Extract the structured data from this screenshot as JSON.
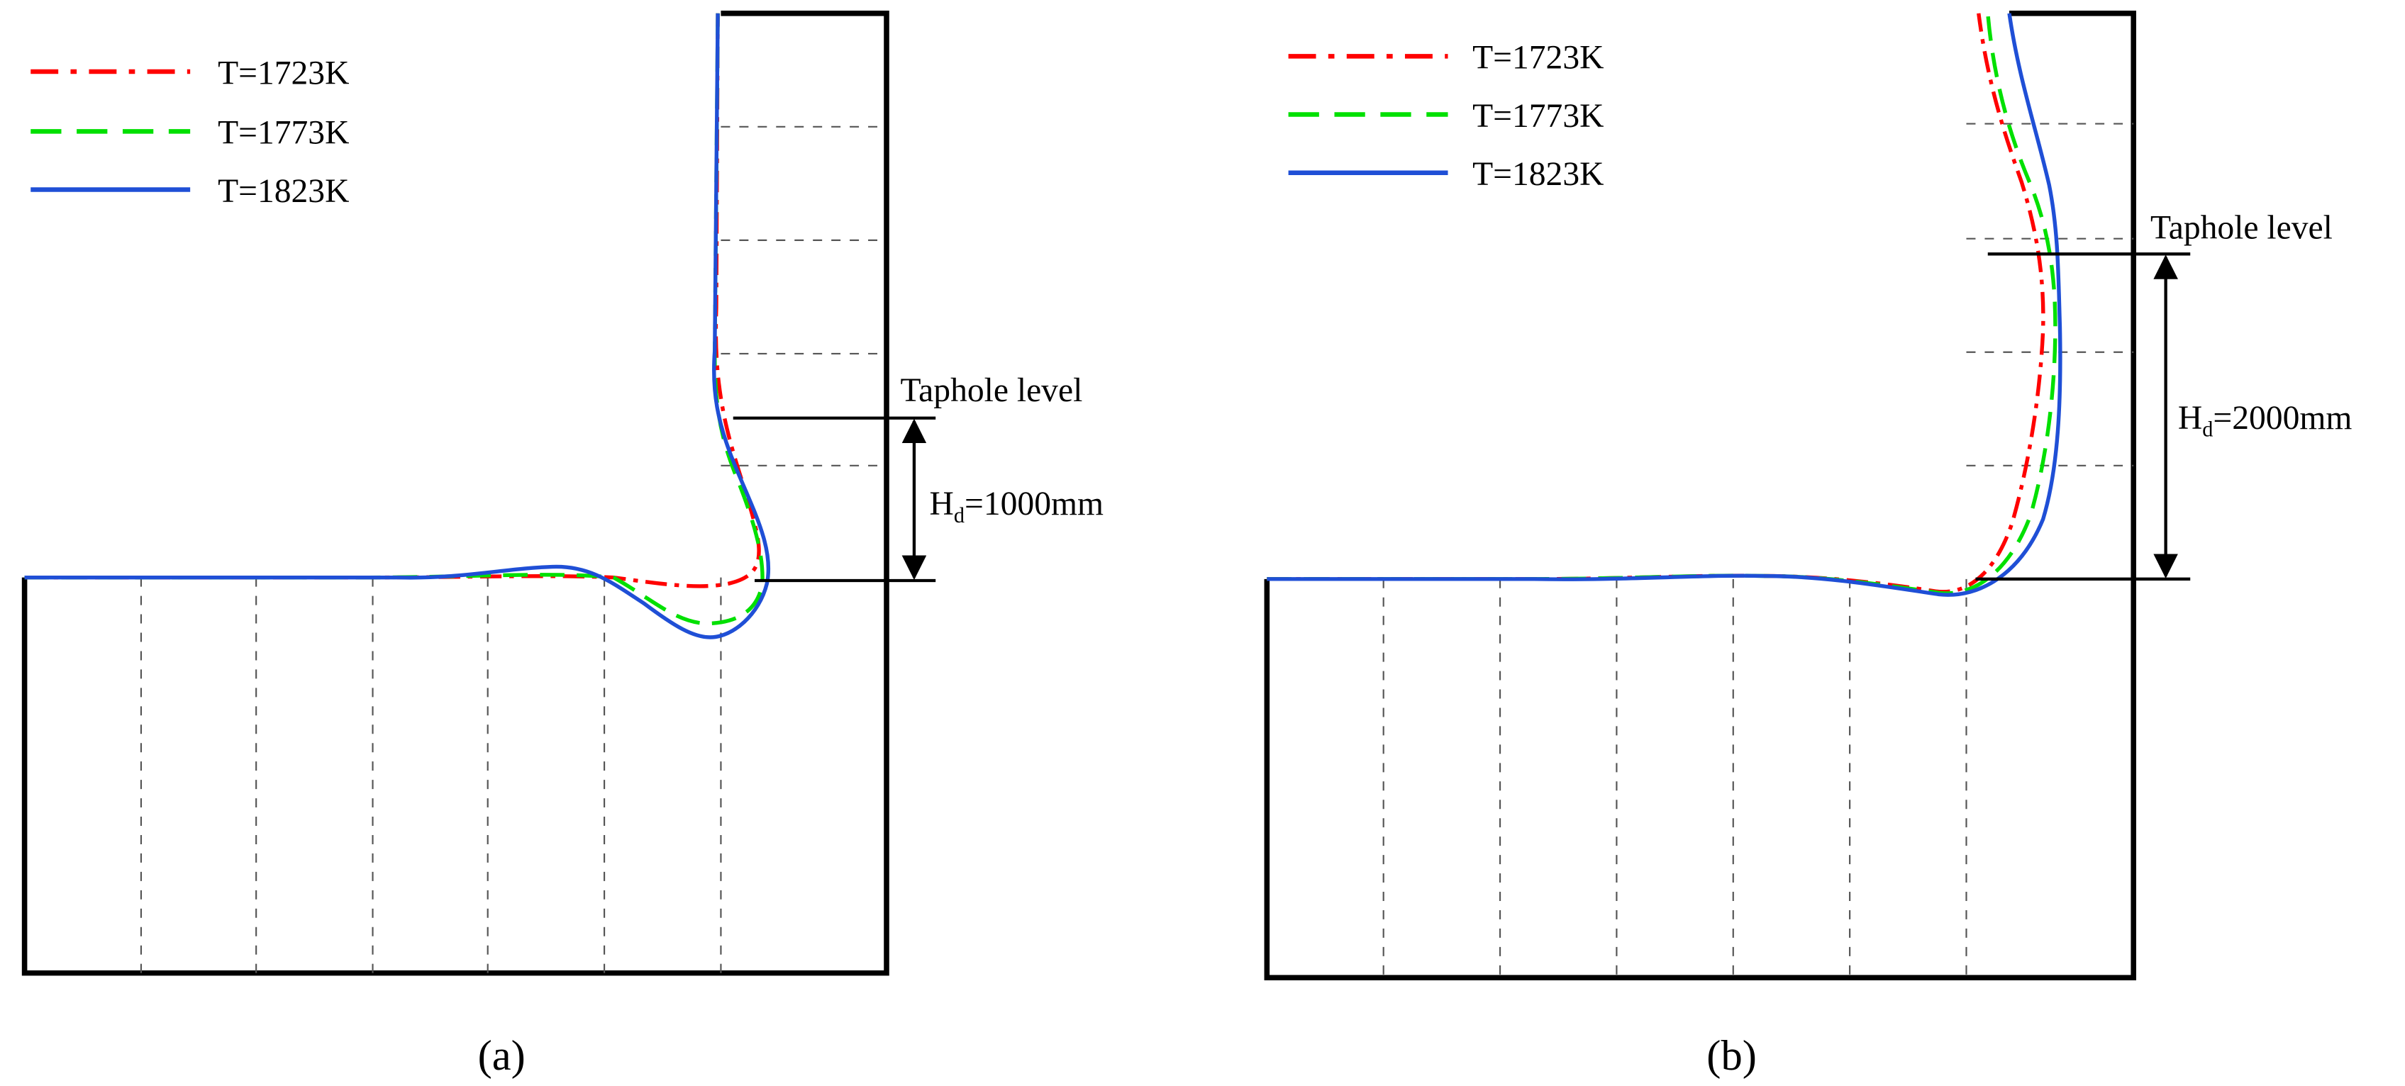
{
  "colors": {
    "T1723": "#ff0000",
    "T1773": "#00e000",
    "T1823": "#1f4fd6",
    "frame": "#000000",
    "gridline": "#555555"
  },
  "panels": [
    {
      "caption": "(a)",
      "legend": [
        "T=1723K",
        "T=1773K",
        "T=1823K"
      ],
      "taphole_label": "Taphole level",
      "hd_label_prefix": "H",
      "hd_label_sub": "d",
      "hd_label_suffix": "=1000mm"
    },
    {
      "caption": "(b)",
      "legend": [
        "T=1723K",
        "T=1773K",
        "T=1823K"
      ],
      "taphole_label": "Taphole level",
      "hd_label_prefix": "H",
      "hd_label_sub": "d",
      "hd_label_suffix": "=2000mm"
    }
  ]
}
